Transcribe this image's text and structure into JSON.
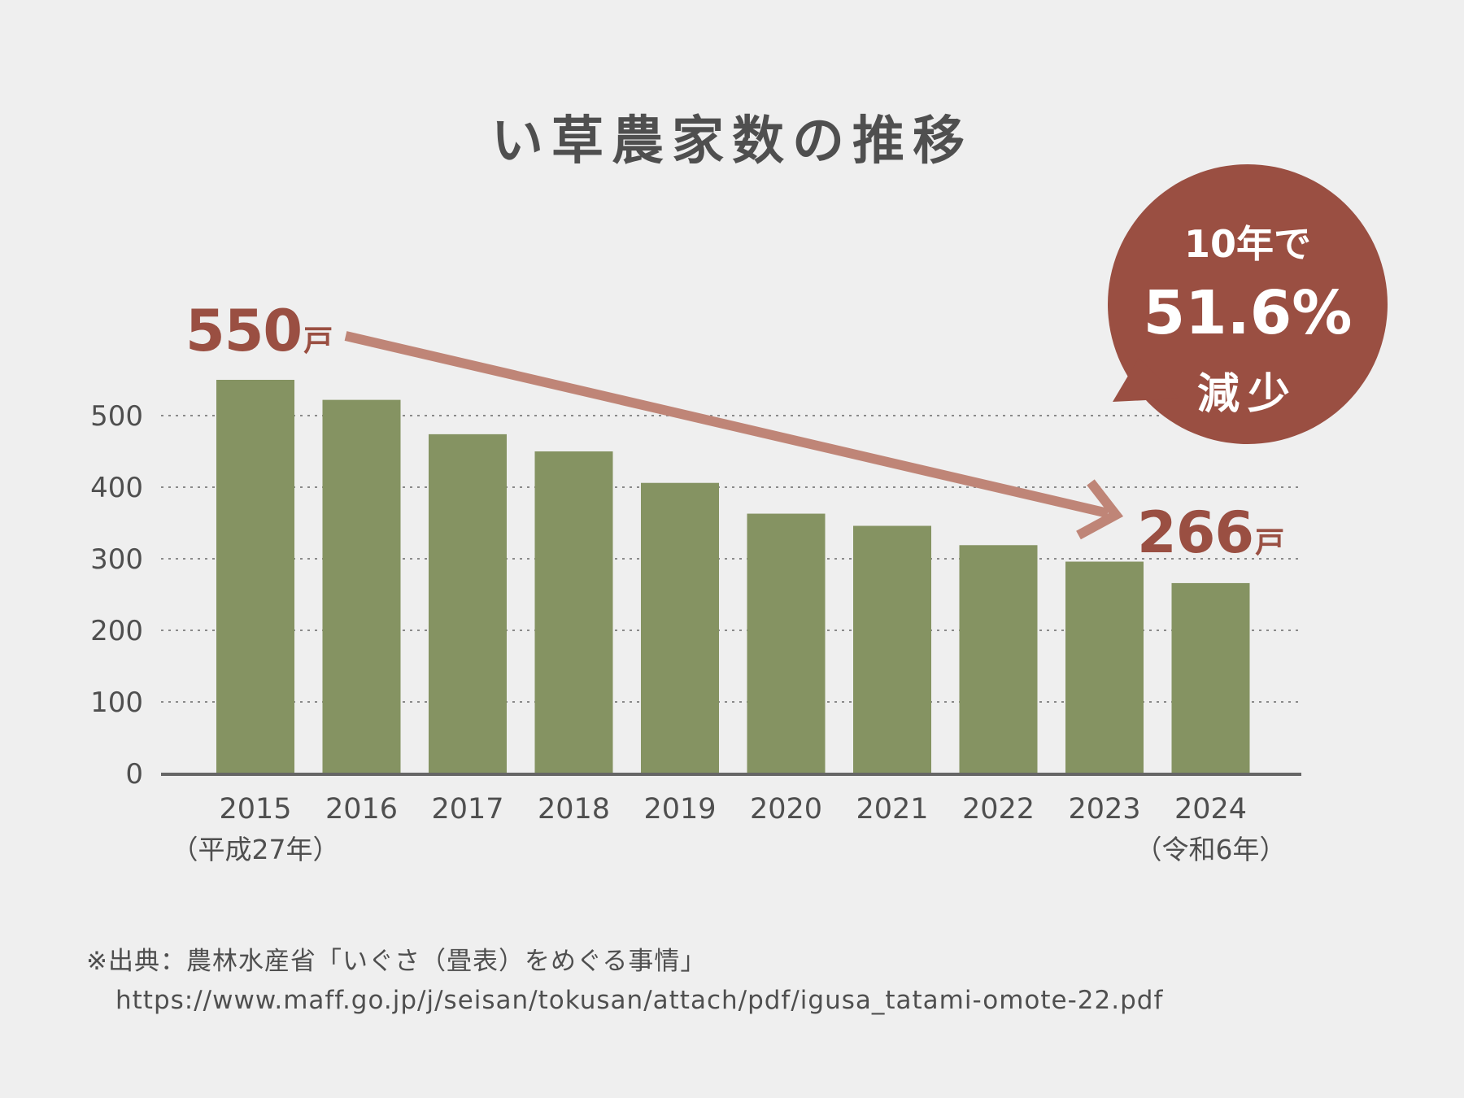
{
  "chart_data": {
    "type": "bar",
    "title": "い草農家数の推移",
    "categories": [
      "2015",
      "2016",
      "2017",
      "2018",
      "2019",
      "2020",
      "2021",
      "2022",
      "2023",
      "2024"
    ],
    "category_sublabels": [
      "（平成27年）",
      "",
      "",
      "",
      "",
      "",
      "",
      "",
      "",
      "（令和6年）"
    ],
    "values": [
      550,
      522,
      474,
      450,
      406,
      363,
      346,
      319,
      296,
      266
    ],
    "unit": "戸",
    "ylim": [
      0,
      550
    ],
    "yticks": [
      0,
      100,
      200,
      300,
      400,
      500
    ],
    "grid": "dotted",
    "bar_color": "#859362",
    "annotations": {
      "start": {
        "value": "550",
        "unit": "戸"
      },
      "end": {
        "value": "266",
        "unit": "戸"
      },
      "arrow_color": "#bf8577"
    },
    "badge": {
      "line1": "10年で",
      "line2": "51.6%",
      "line3": "減少",
      "color": "#9a4f42"
    }
  },
  "source": {
    "line1": "※出典：農林水産省「いぐさ（畳表）をめぐる事情」",
    "url": "https://www.maff.go.jp/j/seisan/tokusan/attach/pdf/igusa_tatami-omote-22.pdf"
  }
}
